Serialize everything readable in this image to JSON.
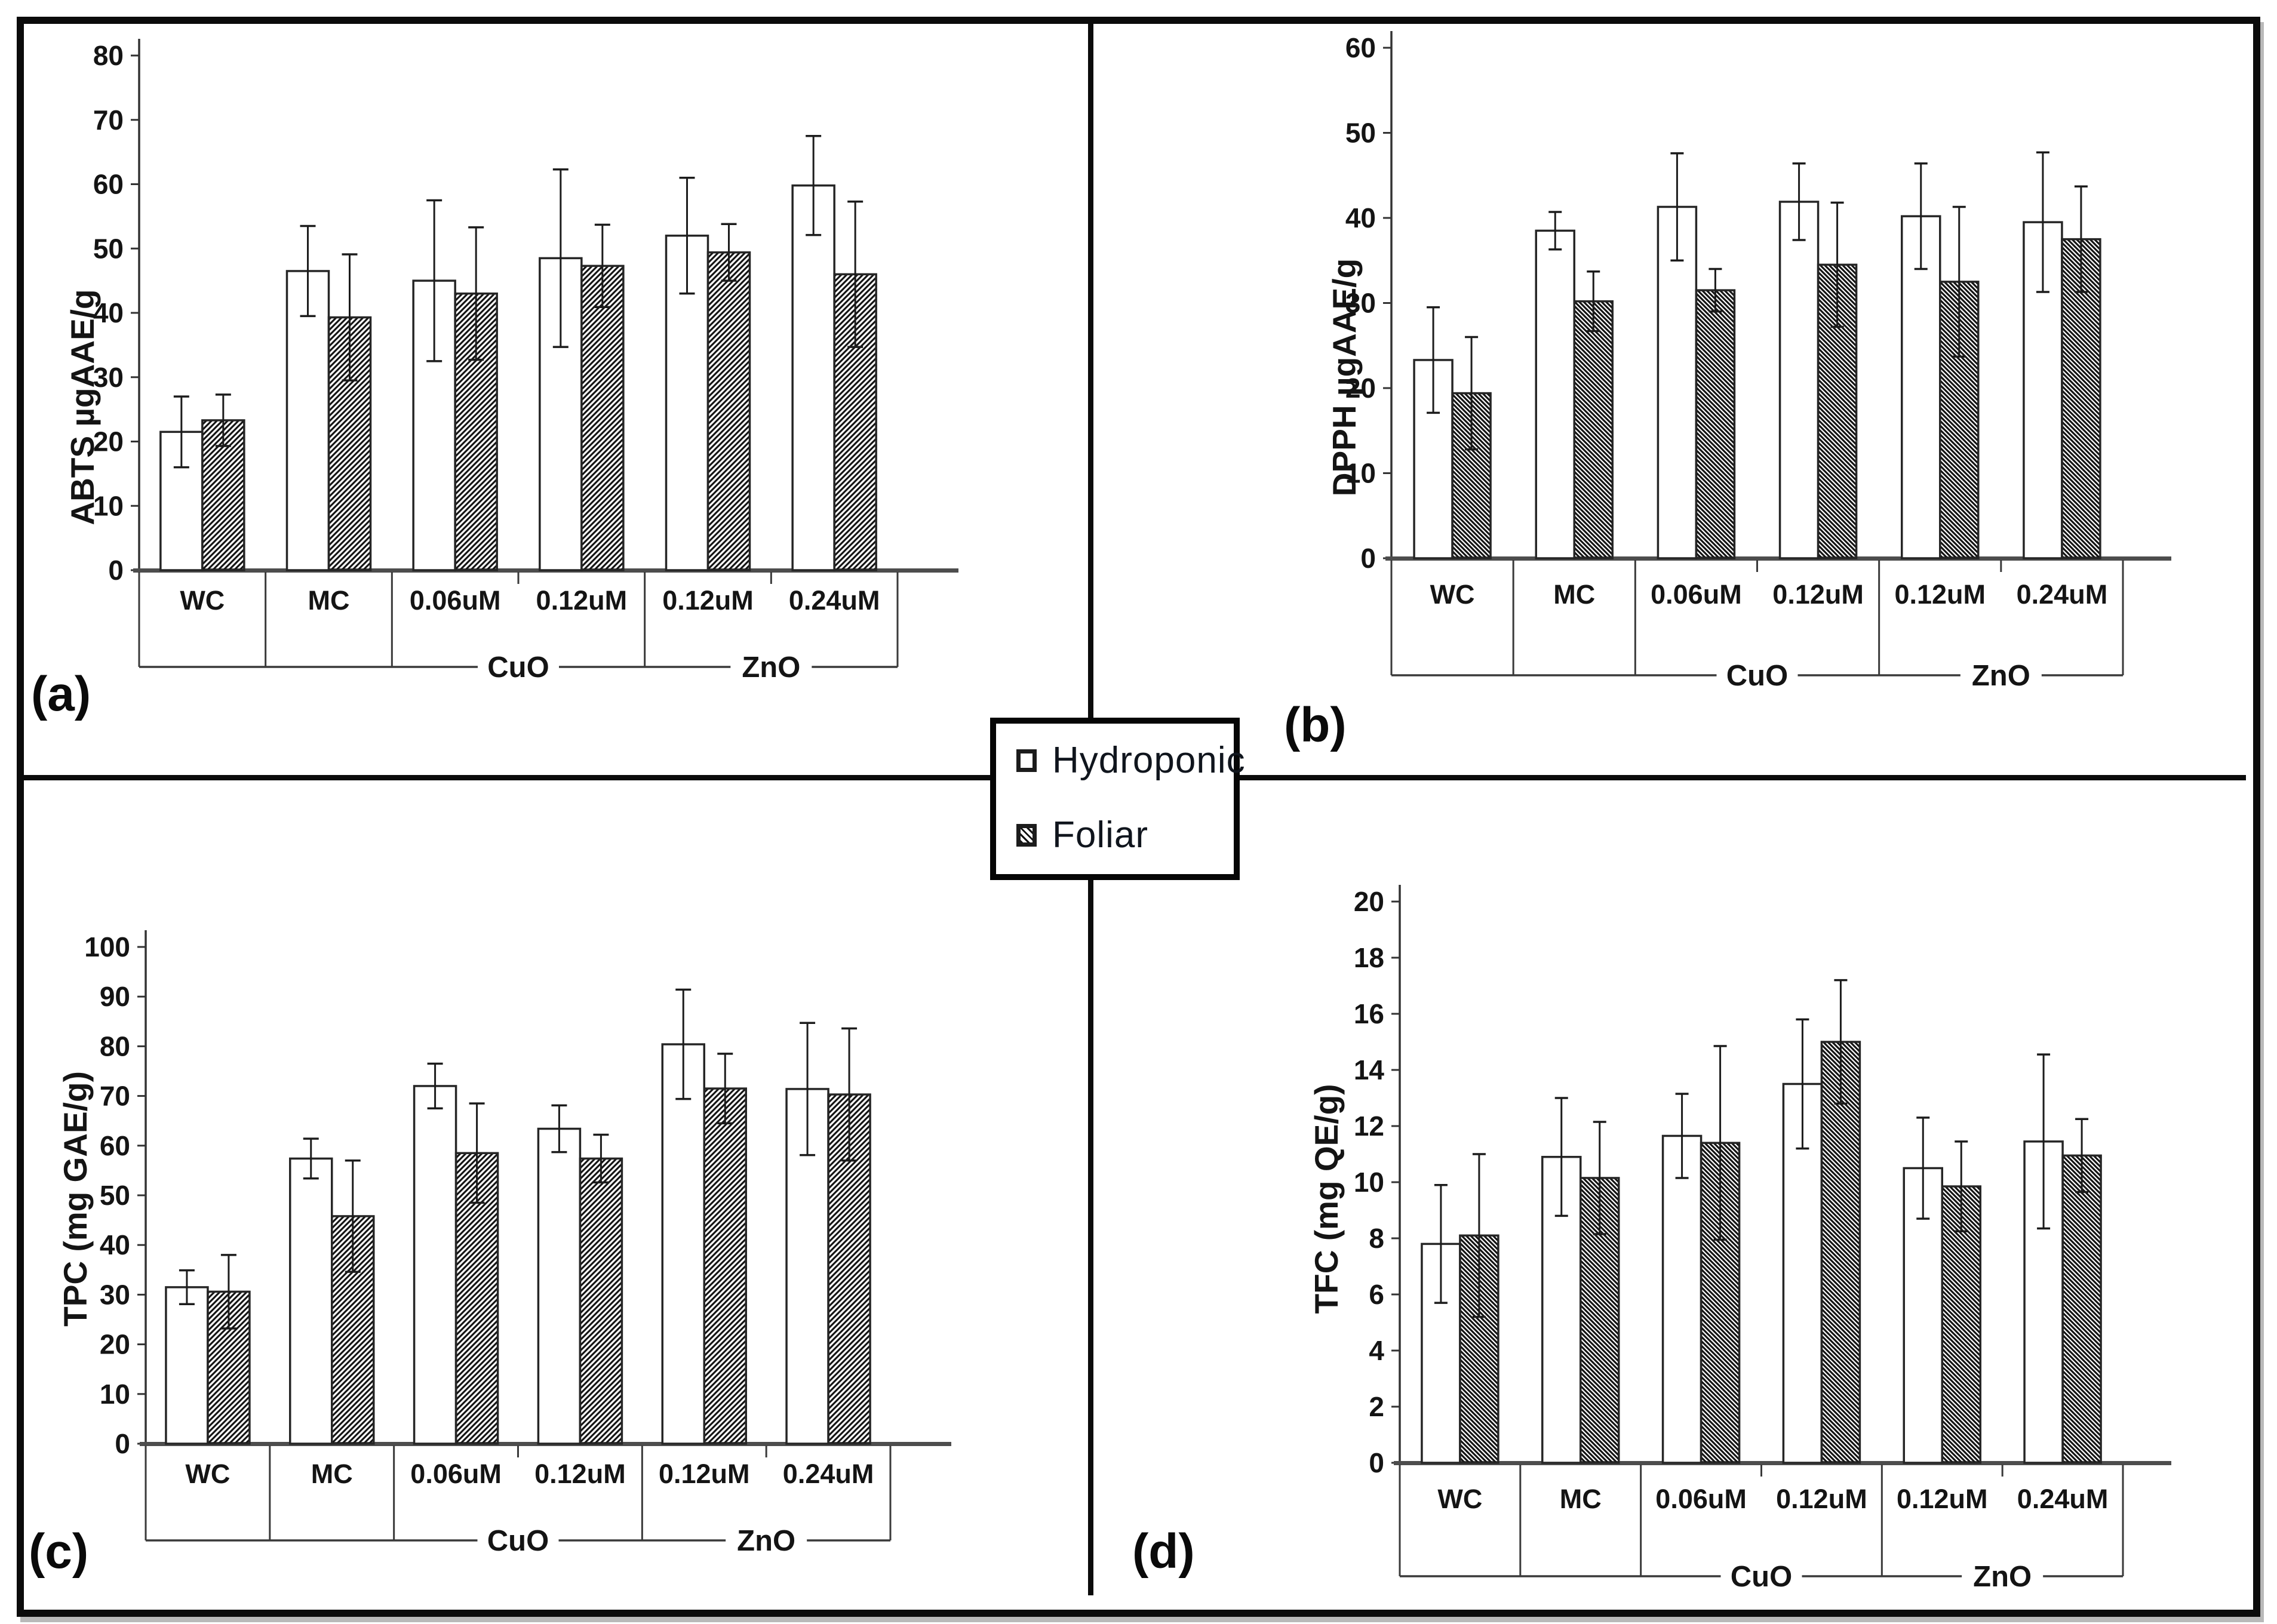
{
  "figure": {
    "legend": {
      "items": [
        {
          "label": "Hydroponic",
          "swatch": "open-square"
        },
        {
          "label": "Foliar",
          "swatch": "hatched-square"
        }
      ]
    },
    "colors": {
      "bar_fill": "#ffffff",
      "bar_stroke": "#262626",
      "hatch": "#141414",
      "frame": "#0b0b0b",
      "baseline": "#4d4d4d",
      "text": "#141414"
    }
  },
  "chart_data": [
    {
      "id": "a",
      "panel_label": "(a)",
      "type": "bar",
      "title": "",
      "ylabel": "ABTS µgAAE/g",
      "xlabel": "",
      "ylim": [
        0,
        80
      ],
      "ytick_step": 10,
      "grid": false,
      "legend_position": "center-of-figure",
      "categories": [
        "WC",
        "MC",
        "0.06uM",
        "0.12uM",
        "0.12uM",
        "0.24uM"
      ],
      "group_labels": [
        {
          "label": "CuO",
          "span": [
            2,
            3
          ]
        },
        {
          "label": "ZnO",
          "span": [
            4,
            5
          ]
        }
      ],
      "series": [
        {
          "name": "Hydroponic",
          "values": [
            21.5,
            46.5,
            45.0,
            48.5,
            52.0,
            59.8
          ],
          "errors": [
            5.5,
            7.0,
            12.5,
            13.8,
            9.0,
            7.7
          ]
        },
        {
          "name": "Foliar",
          "values": [
            23.3,
            39.3,
            43.0,
            47.3,
            49.4,
            46.0
          ],
          "errors": [
            4.0,
            9.8,
            10.3,
            6.4,
            4.4,
            11.3
          ]
        }
      ],
      "hatch_direction": "forward"
    },
    {
      "id": "b",
      "panel_label": "(b)",
      "type": "bar",
      "title": "",
      "ylabel": "DPPH µgAAE/g",
      "xlabel": "",
      "ylim": [
        0,
        60
      ],
      "ytick_step": 10,
      "grid": false,
      "legend_position": "center-of-figure",
      "categories": [
        "WC",
        "MC",
        "0.06uM",
        "0.12uM",
        "0.12uM",
        "0.24uM"
      ],
      "group_labels": [
        {
          "label": "CuO",
          "span": [
            2,
            3
          ]
        },
        {
          "label": "ZnO",
          "span": [
            4,
            5
          ]
        }
      ],
      "series": [
        {
          "name": "Hydroponic",
          "values": [
            23.3,
            38.5,
            41.3,
            41.9,
            40.2,
            39.5
          ],
          "errors": [
            6.2,
            2.2,
            6.3,
            4.5,
            6.2,
            8.2
          ]
        },
        {
          "name": "Foliar",
          "values": [
            19.4,
            30.2,
            31.5,
            34.5,
            32.5,
            37.5
          ],
          "errors": [
            6.6,
            3.5,
            2.5,
            7.3,
            8.8,
            6.2
          ]
        }
      ],
      "hatch_direction": "back"
    },
    {
      "id": "c",
      "panel_label": "(c)",
      "type": "bar",
      "title": "",
      "ylabel": "TPC (mg GAE/g)",
      "xlabel": "",
      "ylim": [
        0,
        100
      ],
      "ytick_step": 10,
      "grid": false,
      "legend_position": "center-of-figure",
      "categories": [
        "WC",
        "MC",
        "0.06uM",
        "0.12uM",
        "0.12uM",
        "0.24uM"
      ],
      "group_labels": [
        {
          "label": "CuO",
          "span": [
            2,
            3
          ]
        },
        {
          "label": "ZnO",
          "span": [
            4,
            5
          ]
        }
      ],
      "series": [
        {
          "name": "Hydroponic",
          "values": [
            31.5,
            57.4,
            72.0,
            63.4,
            80.4,
            71.4
          ],
          "errors": [
            3.4,
            4.0,
            4.5,
            4.7,
            11.0,
            13.3
          ]
        },
        {
          "name": "Foliar",
          "values": [
            30.6,
            45.8,
            58.5,
            57.4,
            71.5,
            70.3
          ],
          "errors": [
            7.4,
            11.2,
            10.0,
            4.8,
            7.0,
            13.3
          ]
        }
      ],
      "hatch_direction": "forward"
    },
    {
      "id": "d",
      "panel_label": "(d)",
      "type": "bar",
      "title": "",
      "ylabel": "TFC (mg QE/g)",
      "xlabel": "",
      "ylim": [
        0,
        20
      ],
      "ytick_step": 2,
      "grid": false,
      "legend_position": "center-of-figure",
      "categories": [
        "WC",
        "MC",
        "0.06uM",
        "0.12uM",
        "0.12uM",
        "0.24uM"
      ],
      "group_labels": [
        {
          "label": "CuO",
          "span": [
            2,
            3
          ]
        },
        {
          "label": "ZnO",
          "span": [
            4,
            5
          ]
        }
      ],
      "series": [
        {
          "name": "Hydroponic",
          "values": [
            7.8,
            10.9,
            11.65,
            13.5,
            10.5,
            11.45
          ],
          "errors": [
            2.1,
            2.1,
            1.5,
            2.3,
            1.8,
            3.1
          ]
        },
        {
          "name": "Foliar",
          "values": [
            8.1,
            10.15,
            11.4,
            15.0,
            9.85,
            10.95
          ],
          "errors": [
            2.9,
            2.0,
            3.45,
            2.2,
            1.6,
            1.3
          ]
        }
      ],
      "hatch_direction": "back"
    }
  ]
}
